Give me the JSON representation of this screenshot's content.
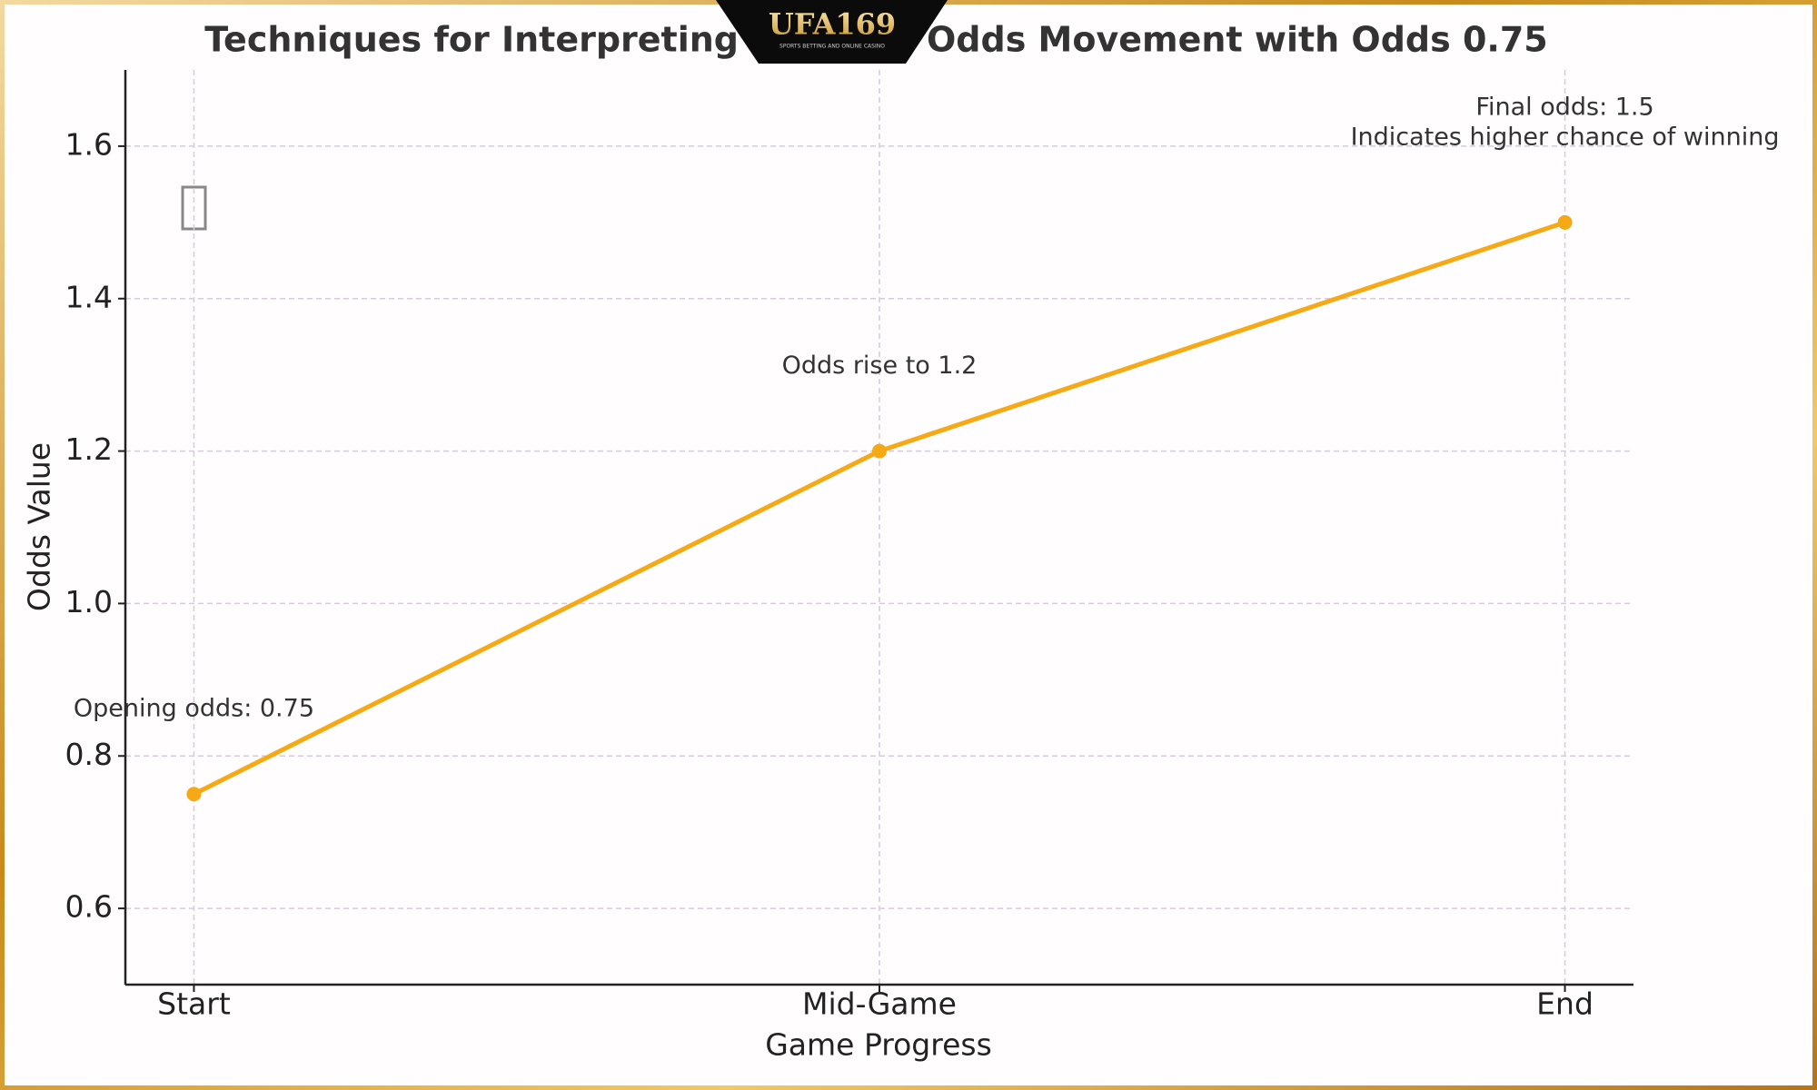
{
  "chart_data": {
    "type": "line",
    "title": [
      "Techniques for Interpreting",
      "Odds Movement with Odds 0.75"
    ],
    "logo": {
      "name": "UFA169",
      "tagline": "SPORTS BETTING AND ONLINE CASINO"
    },
    "x_label": "Game Progress",
    "y_label": "Odds Value",
    "categories": [
      "Start",
      "Mid-Game",
      "End"
    ],
    "values": [
      0.75,
      1.2,
      1.5
    ],
    "color": "#f5a914",
    "annotations": [
      [
        "Opening odds: 0.75"
      ],
      [
        "Odds rise to 1.2"
      ],
      [
        "Final odds: 1.5",
        "Indicates higher chance of winning"
      ]
    ],
    "ylim": [
      0.5,
      1.7
    ],
    "yticks": [
      0.6,
      0.8,
      {
        "value": 1,
        "label": "1.0"
      },
      1.2,
      1.4,
      1.6
    ],
    "grid": true
  }
}
